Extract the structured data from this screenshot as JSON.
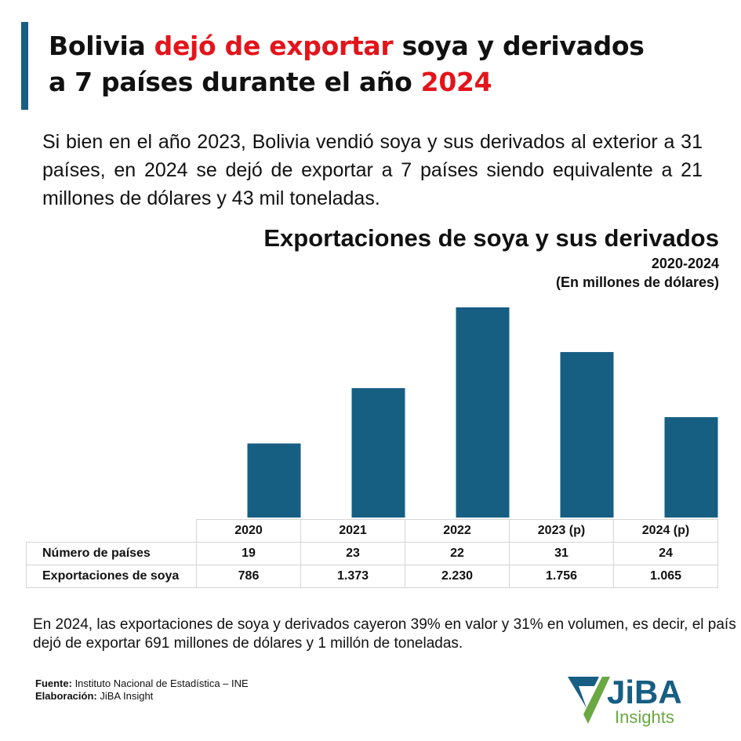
{
  "title": {
    "part1": "Bolivia ",
    "highlight": "dejó de exportar",
    "part2": " soya y derivados",
    "line2a": "a 7 países durante el año ",
    "line2b": "2024"
  },
  "intro": "Si bien en el año 2023, Bolivia vendió soya y sus derivados al exterior a 31 países, en 2024 se dejó de exportar a 7 países siendo equivalente a 21 millones de dólares y 43 mil toneladas.",
  "note": "En 2024, las exportaciones de soya y derivados cayeron 39% en valor y 31% en volumen, es decir, el país dejó de exportar 691 millones de dólares y 1 millón de toneladas.",
  "source": {
    "label": "Fuente:",
    "value": " Instituto Nacional de Estadística – INE",
    "elab_label": "Elaboración:",
    "elab_value": " JiBA Insight"
  },
  "logo": {
    "text1": "JiBA",
    "text2": "Insights"
  },
  "colors": {
    "bar": "#175e83",
    "accent": "#e3141b",
    "logo_green": "#6aa842"
  },
  "chart_data": {
    "type": "bar",
    "title": "Exportaciones de soya y sus derivados",
    "subtitle": "2020-2024",
    "unit": "(En millones de dólares)",
    "categories": [
      "2020",
      "2021",
      "2022",
      "2023 (p)",
      "2024 (p)"
    ],
    "values": [
      786,
      1373,
      2230,
      1756,
      1065
    ],
    "ylim": [
      0,
      2230
    ],
    "table": {
      "rows": [
        {
          "label": "Número de países",
          "values": [
            "19",
            "23",
            "22",
            "31",
            "24"
          ]
        },
        {
          "label": "Exportaciones de soya",
          "values": [
            "786",
            "1.373",
            "2.230",
            "1.756",
            "1.065"
          ]
        }
      ]
    }
  }
}
